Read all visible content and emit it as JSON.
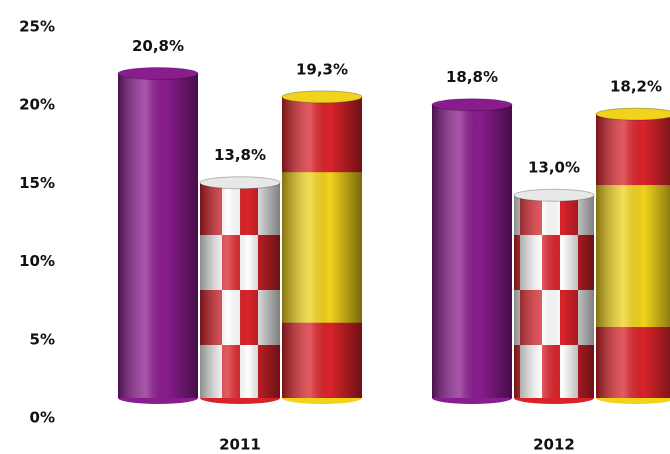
{
  "chart_data": {
    "type": "bar",
    "categories": [
      "2011",
      "2012"
    ],
    "series": [
      {
        "color": "#8a1c8e",
        "values": [
          20.8,
          18.8
        ],
        "value_labels": [
          "20,8%",
          "18,8%"
        ]
      },
      {
        "color": "#d9232a",
        "values": [
          13.8,
          13.0
        ],
        "value_labels": [
          "13,8%",
          "13,0%"
        ]
      },
      {
        "color": "#f1d21c",
        "values": [
          19.3,
          18.2
        ],
        "value_labels": [
          "19,3%",
          "18,2%"
        ]
      }
    ],
    "ylim": [
      0,
      25
    ],
    "yticks": [
      {
        "value": 0,
        "label": "0%"
      },
      {
        "value": 5,
        "label": "5%"
      },
      {
        "value": 10,
        "label": "10%"
      },
      {
        "value": 15,
        "label": "15%"
      },
      {
        "value": 20,
        "label": "20%"
      },
      {
        "value": 25,
        "label": "25%"
      }
    ],
    "grid": false
  }
}
